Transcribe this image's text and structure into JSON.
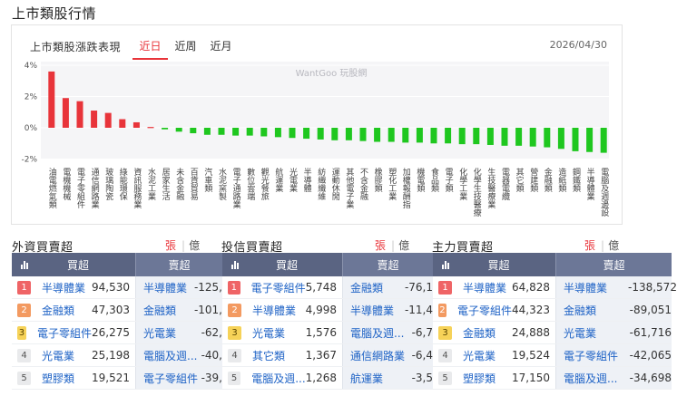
{
  "page_title": "上市類股行情",
  "chart_card": {
    "title": "上市類股漲跌表現",
    "tabs": [
      "近日",
      "近周",
      "近月"
    ],
    "active_tab": "近日",
    "date": "2026/04/30",
    "watermark": "WantGoo 玩股網"
  },
  "colors": {
    "up": "#e8343a",
    "down": "#1fc71f",
    "accent": "#e8343a",
    "header": "#545e7a"
  },
  "chart_data": {
    "type": "bar",
    "categories": [
      "油電燃氣類",
      "電機機械",
      "電子零組件",
      "通信網路業",
      "玻璃陶瓷",
      "綠能環保",
      "資訊服務業",
      "水泥工業",
      "居家生活",
      "未含金融",
      "百貨貿易",
      "汽車類",
      "水泥窯製",
      "電子通路業",
      "數位雲端",
      "觀光餐旅",
      "航運業",
      "光電業",
      "半導體",
      "紡織纖維",
      "運動休閒",
      "其他電子業",
      "不含金融",
      "橡膠類",
      "塑化工業",
      "加權報酬指",
      "機電類",
      "食品類",
      "電子類",
      "化學工業",
      "化學生技醫療",
      "生技醫療業",
      "電器電纜",
      "其它類",
      "營建類",
      "金融類",
      "造紙類",
      "鋼鐵類",
      "半導體業",
      "電腦及週邊設"
    ],
    "values": [
      3.6,
      1.9,
      1.7,
      1.1,
      0.95,
      0.55,
      0.35,
      0.05,
      -0.1,
      -0.25,
      -0.35,
      -0.45,
      -0.45,
      -0.5,
      -0.5,
      -0.55,
      -0.6,
      -0.65,
      -0.7,
      -0.75,
      -0.8,
      -0.8,
      -0.85,
      -0.9,
      -0.9,
      -0.95,
      -0.95,
      -1.0,
      -1.0,
      -1.05,
      -1.05,
      -1.1,
      -1.15,
      -1.15,
      -1.2,
      -1.25,
      -1.35,
      -1.5,
      -1.55,
      -1.6
    ],
    "yticks": [
      "4%",
      "2%",
      "0%",
      "-2%"
    ],
    "ylim": [
      -2.0,
      4.0
    ]
  },
  "panels": [
    {
      "title": "外資買賣超",
      "unit_a": "張",
      "unit_sep": "|",
      "unit_b": "億",
      "buy_header": "買超",
      "sell_header": "賣超",
      "buy": [
        {
          "rank": "1",
          "name": "半導體業",
          "value": "94,530"
        },
        {
          "rank": "2",
          "name": "金融類",
          "value": "47,303"
        },
        {
          "rank": "3",
          "name": "電子零組件",
          "value": "26,275"
        },
        {
          "rank": "4",
          "name": "光電業",
          "value": "25,198"
        },
        {
          "rank": "5",
          "name": "塑膠類",
          "value": "19,521"
        }
      ],
      "sell": [
        {
          "name": "半導體業",
          "value": "-125,"
        },
        {
          "name": "金融類",
          "value": "-101,"
        },
        {
          "name": "光電業",
          "value": "-62,"
        },
        {
          "name": "電腦及週...",
          "value": "-40,"
        },
        {
          "name": "電子零組件",
          "value": "-39,"
        }
      ]
    },
    {
      "title": "投信買賣超",
      "unit_a": "張",
      "unit_sep": "|",
      "unit_b": "億",
      "buy_header": "買超",
      "sell_header": "賣超",
      "buy": [
        {
          "rank": "1",
          "name": "電子零組件",
          "value": "5,748"
        },
        {
          "rank": "2",
          "name": "半導體業",
          "value": "4,998"
        },
        {
          "rank": "3",
          "name": "光電業",
          "value": "1,576"
        },
        {
          "rank": "4",
          "name": "其它類",
          "value": "1,367"
        },
        {
          "rank": "5",
          "name": "電腦及週...",
          "value": "1,268"
        }
      ],
      "sell": [
        {
          "name": "金融類",
          "value": "-76,1"
        },
        {
          "name": "半導體業",
          "value": "-11,4"
        },
        {
          "name": "電腦及週...",
          "value": "-6,7"
        },
        {
          "name": "通信網路業",
          "value": "-6,4"
        },
        {
          "name": "航運業",
          "value": "-3,5"
        }
      ]
    },
    {
      "title": "主力買賣超",
      "unit_a": "張",
      "unit_sep": "|",
      "unit_b": "億",
      "buy_header": "買超",
      "sell_header": "賣超",
      "buy": [
        {
          "rank": "1",
          "name": "半導體業",
          "value": "64,828"
        },
        {
          "rank": "2",
          "name": "電子零組件",
          "value": "44,323"
        },
        {
          "rank": "3",
          "name": "金融類",
          "value": "24,888"
        },
        {
          "rank": "4",
          "name": "光電業",
          "value": "19,524"
        },
        {
          "rank": "5",
          "name": "塑膠類",
          "value": "17,150"
        }
      ],
      "sell": [
        {
          "name": "半導體業",
          "value": "-138,572"
        },
        {
          "name": "金融類",
          "value": "-89,051"
        },
        {
          "name": "光電業",
          "value": "-61,716"
        },
        {
          "name": "電子零組件",
          "value": "-42,065"
        },
        {
          "name": "電腦及週...",
          "value": "-34,698"
        }
      ]
    }
  ]
}
